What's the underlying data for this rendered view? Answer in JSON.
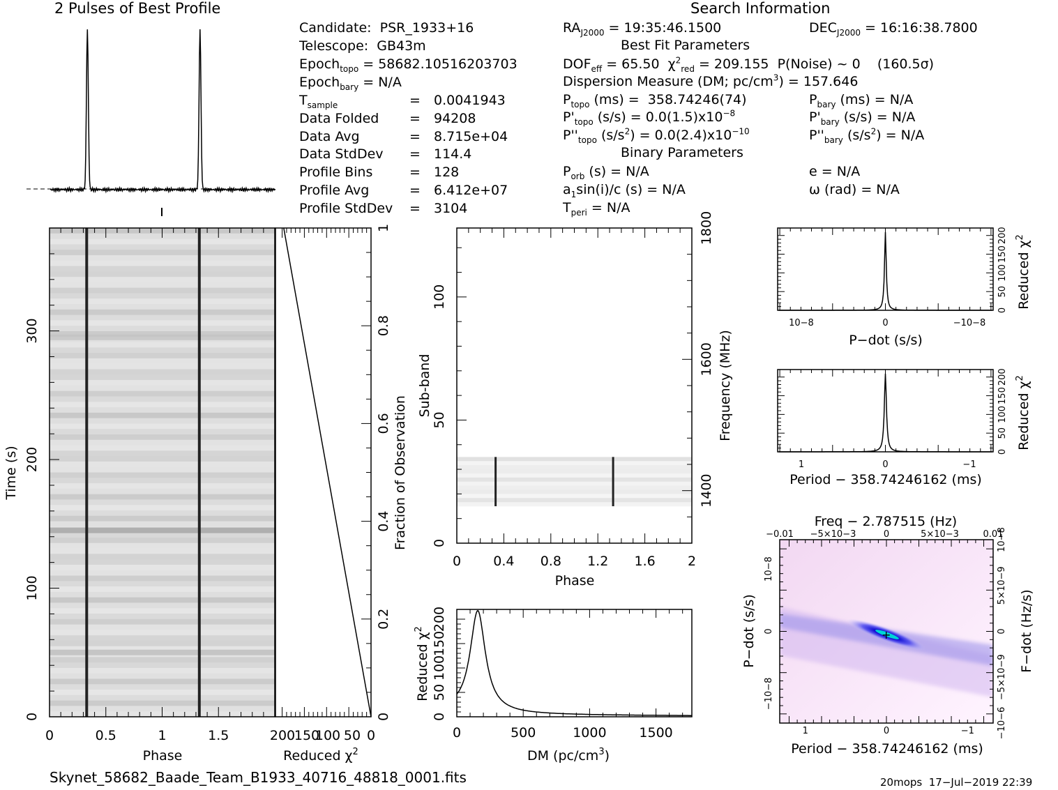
{
  "headings": {
    "profile_title": "2 Pulses of Best Profile",
    "search_title": "Search Information",
    "best_fit": "Best Fit Parameters",
    "binary": "Binary Parameters"
  },
  "left_info": {
    "candidate": "Candidate:  PSR_1933+16",
    "telescope": "Telescope:  GB43m",
    "epoch_topo_lbl": "Epoch",
    "epoch_topo_sub": "topo",
    "epoch_topo_val": " = 58682.10516203703",
    "epoch_bary_lbl": "Epoch",
    "epoch_bary_sub": "bary",
    "epoch_bary_val": " = N/A",
    "rows": [
      {
        "label": "T",
        "sub": "sample",
        "eq": "=",
        "value": "0.0041943"
      },
      {
        "label": "Data Folded",
        "sub": "",
        "eq": "=",
        "value": "94208"
      },
      {
        "label": "Data Avg",
        "sub": "",
        "eq": "=",
        "value": "8.715e+04"
      },
      {
        "label": "Data StdDev",
        "sub": "",
        "eq": "=",
        "value": "114.4"
      },
      {
        "label": "Profile Bins",
        "sub": "",
        "eq": "=",
        "value": "128"
      },
      {
        "label": "Profile Avg",
        "sub": "",
        "eq": "=",
        "value": "6.412e+07"
      },
      {
        "label": "Profile StdDev",
        "sub": "",
        "eq": "=",
        "value": "3104"
      }
    ]
  },
  "search_info": {
    "ra": "RA",
    "ra_sub": "J2000",
    "ra_val": " = 19:35:46.1500",
    "dec": "DEC",
    "dec_sub": "J2000",
    "dec_val": " = 16:16:38.7800",
    "dof": "DOF",
    "dof_sub": "eff",
    "dof_val": " = 65.50  χ",
    "chi_sup": "2",
    "chi_sub": "red",
    "chi_val": " = 209.155  P(Noise) ~ 0    (160.5σ)",
    "dm_line_a": "Dispersion Measure (DM; pc/cm",
    "dm_sup": "3",
    "dm_line_b": ") = 157.646",
    "ptopo": "P",
    "ptopo_sub": "topo",
    "ptopo_val": " (ms) =  358.74246(74)",
    "pbary": "P",
    "pbary_sub": "bary",
    "pbary_val": " (ms) = N/A",
    "pdtopo": "P'",
    "pdtopo_sub": "topo",
    "pdtopo_val": " (s/s) = 0.0(1.5)x10",
    "pdtopo_exp": "−8",
    "pdbary": "P'",
    "pdbary_sub": "bary",
    "pdbary_val": " (s/s) = N/A",
    "pddtopo": "P''",
    "pddtopo_sub": "topo",
    "pddtopo_val": " (s/s",
    "pddtopo_sup": "2",
    "pddtopo_val2": ") = 0.0(2.4)x10",
    "pddtopo_exp": "−10",
    "pddbary": "P''",
    "pddbary_sub": "bary",
    "pddbary_val": " (s/s",
    "pddbary_sup": "2",
    "pddbary_val2": ") = N/A",
    "porb": "P",
    "porb_sub": "orb",
    "porb_val": " (s) = N/A",
    "ecc": "e = N/A",
    "a1": "a",
    "a1_sub": "1",
    "a1_val": "sin(i)/c (s) = N/A",
    "omega": "ω (rad) = N/A",
    "tperi": "T",
    "tperi_sub": "peri",
    "tperi_val": " = N/A"
  },
  "axes": {
    "phase": "Phase",
    "time": "Time (s)",
    "reduced_chi": "Reduced χ",
    "chi_sup": "2",
    "fraction": "Fraction of Observation",
    "subband": "Sub-band",
    "frequency": "Frequency (MHz)",
    "dm": "DM (pc/cm",
    "dm_sup": "3",
    "dm_close": ")",
    "pdot": "P−dot (s/s)",
    "period": "Period − 358.74246162 (ms)",
    "period2": "Period − 358.74246162 (ms)",
    "freq": "Freq − 2.787515 (Hz)",
    "fdot": "F−dot (Hz/s)",
    "pdot_y": "P−dot (s/s)"
  },
  "footer": {
    "filename": "Skynet_58682_Baade_Team_B1933_40716_48818_0001.fits",
    "stamp": "20mops  17−Jul−2019 22:39"
  },
  "chart_data": [
    {
      "type": "line",
      "title": "2 Pulses of Best Profile",
      "x": "Phase",
      "xlim": [
        0,
        2
      ],
      "peaks_at_phase": [
        0.33,
        1.33
      ]
    },
    {
      "type": "heatmap",
      "xlabel": "Phase",
      "ylabel": "Time (s)",
      "xlim": [
        0,
        2
      ],
      "ylim": [
        0,
        380
      ],
      "x_ticks": [
        "0",
        "0.5",
        "1",
        "1.5"
      ],
      "y_ticks": [
        "0",
        "100",
        "200",
        "300"
      ],
      "pulse_phase": [
        0.33,
        1.33
      ]
    },
    {
      "type": "line",
      "xlabel": "Reduced χ2",
      "ylabel": "Fraction of Observation",
      "x_ticks": [
        "200",
        "150",
        "100",
        "50",
        "0"
      ],
      "y_ticks": [
        "0",
        "0.2",
        "0.4",
        "0.6",
        "0.8",
        "1"
      ],
      "points": [
        [
          0,
          0
        ],
        [
          209,
          1
        ]
      ]
    },
    {
      "type": "heatmap",
      "xlabel": "Phase",
      "ylabel": "Sub-band",
      "right_ylabel": "Frequency (MHz)",
      "xlim": [
        0,
        2
      ],
      "ylim": [
        0,
        128
      ],
      "x_ticks": [
        "0",
        "0.4",
        "0.8",
        "1.2",
        "1.6",
        "2"
      ],
      "y_ticks": [
        "0",
        "50",
        "100"
      ],
      "right_ticks": [
        "1400",
        "1600",
        "1800"
      ],
      "band": [
        15,
        35
      ],
      "pulse_phase": [
        0.33,
        1.33
      ]
    },
    {
      "type": "line",
      "xlabel": "DM (pc/cm3)",
      "ylabel": "Reduced χ2",
      "xlim": [
        0,
        1770
      ],
      "ylim": [
        0,
        220
      ],
      "x_ticks": [
        "0",
        "500",
        "1000",
        "1500"
      ],
      "y_ticks": [
        "0",
        "50",
        "100",
        "150",
        "200"
      ],
      "peak": [
        157.6,
        209.2
      ]
    },
    {
      "type": "line",
      "xlabel": "P−dot (s/s)",
      "ylabel": "Reduced χ2",
      "x_ticks": [
        "10−8",
        "0",
        "−10−8"
      ],
      "y_ticks": [
        "0",
        "50",
        "100",
        "150",
        "200"
      ],
      "peak": [
        0,
        209
      ]
    },
    {
      "type": "line",
      "xlabel": "Period − 358.74246162 (ms)",
      "ylabel": "Reduced χ2",
      "x_ticks": [
        "1",
        "0",
        "−1"
      ],
      "y_ticks": [
        "0",
        "50",
        "100",
        "150",
        "200"
      ],
      "peak": [
        0,
        209
      ]
    },
    {
      "type": "heatmap",
      "xlabel": "Period − 358.74246162 (ms)",
      "ylabel": "P−dot (s/s)",
      "top_xlabel": "Freq − 2.787515 (Hz)",
      "right_ylabel": "F−dot (Hz/s)",
      "x_ticks": [
        "1",
        "0",
        "−1"
      ],
      "top_ticks": [
        "−0.01",
        "−5×10−3",
        "0",
        "5×10−3",
        "0.01"
      ],
      "y_ticks": [
        "10−8",
        "0",
        "−10−8"
      ],
      "right_ticks": [
        "−10−6",
        "−5×10−9",
        "0",
        "5×10−9",
        "10−8"
      ],
      "peak": [
        0,
        0
      ]
    }
  ]
}
